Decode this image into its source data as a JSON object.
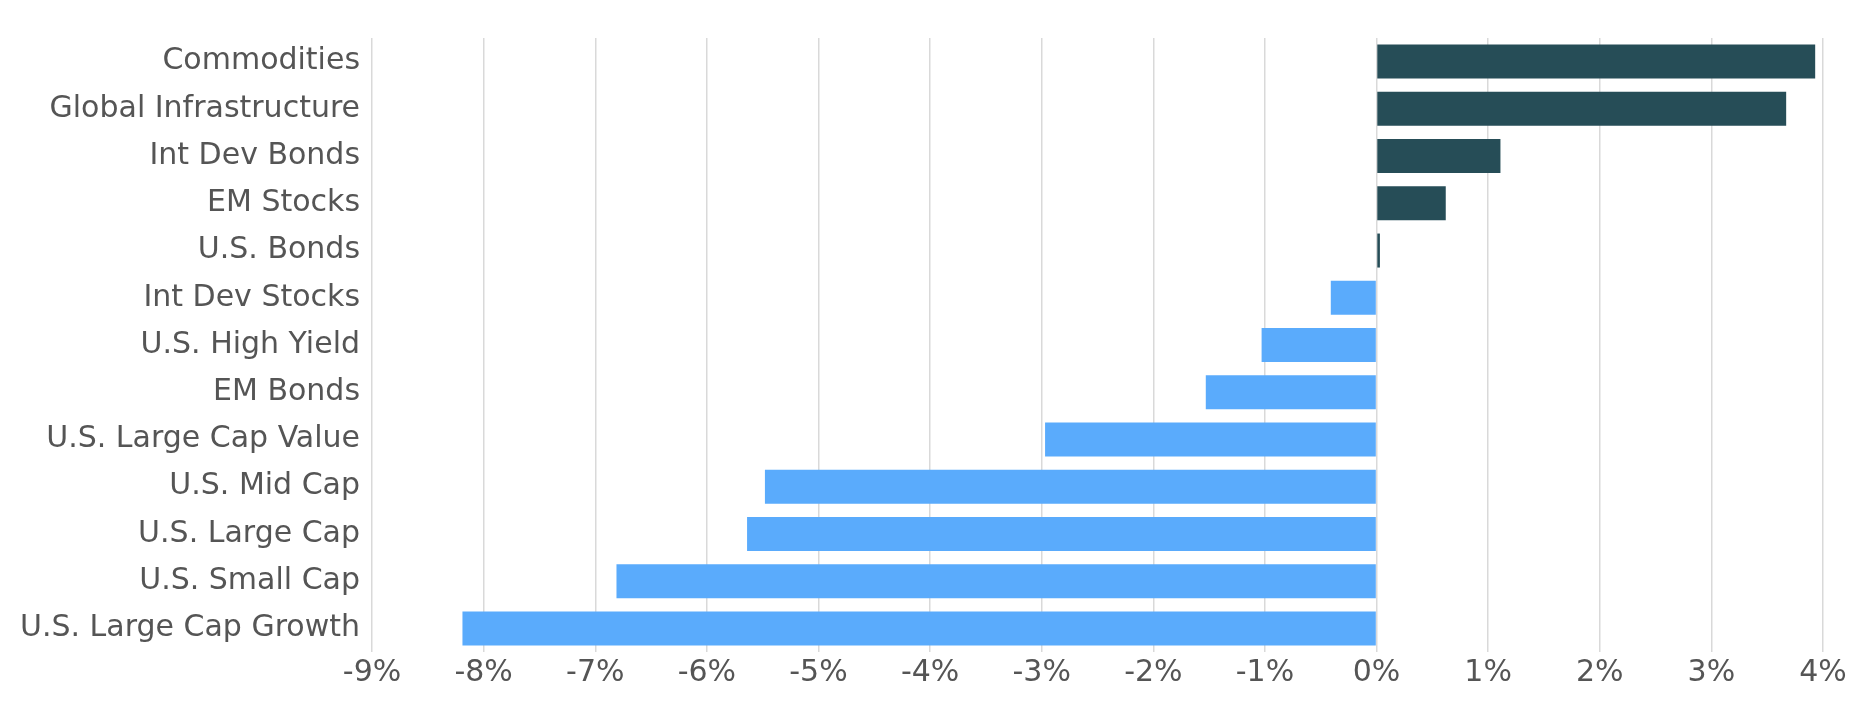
{
  "chart_data": {
    "type": "bar",
    "orientation": "horizontal",
    "categories": [
      "Commodities",
      "Global Infrastructure",
      "Int Dev Bonds",
      "EM Stocks",
      "U.S. Bonds",
      "Int Dev Stocks",
      "U.S. High Yield",
      "EM Bonds",
      "U.S. Large Cap Value",
      "U.S. Mid Cap",
      "U.S. Large Cap",
      "U.S. Small Cap",
      "U.S. Large Cap Growth"
    ],
    "values": [
      3.93,
      3.67,
      1.11,
      0.62,
      0.03,
      -0.41,
      -1.03,
      -1.53,
      -2.97,
      -5.48,
      -5.64,
      -6.81,
      -8.19
    ],
    "colors": [
      "#264d57",
      "#264d57",
      "#264d57",
      "#264d57",
      "#264d57",
      "#5aabfc",
      "#5aabfc",
      "#5aabfc",
      "#5aabfc",
      "#5aabfc",
      "#5aabfc",
      "#5aabfc",
      "#5aabfc"
    ],
    "xlim": [
      -9,
      4
    ],
    "xticks": [
      {
        "value": -9,
        "label": "-9%"
      },
      {
        "value": -8,
        "label": "-8%"
      },
      {
        "value": -7,
        "label": "-7%"
      },
      {
        "value": -6,
        "label": "-6%"
      },
      {
        "value": -5,
        "label": "-5%"
      },
      {
        "value": -4,
        "label": "-4%"
      },
      {
        "value": -3,
        "label": "-3%"
      },
      {
        "value": -2,
        "label": "-2%"
      },
      {
        "value": -1,
        "label": "-1%"
      },
      {
        "value": 0,
        "label": "0%"
      },
      {
        "value": 1,
        "label": "1%"
      },
      {
        "value": 2,
        "label": "2%"
      },
      {
        "value": 3,
        "label": "3%"
      },
      {
        "value": 4,
        "label": "4%"
      }
    ],
    "grid": "x",
    "legend": false
  }
}
